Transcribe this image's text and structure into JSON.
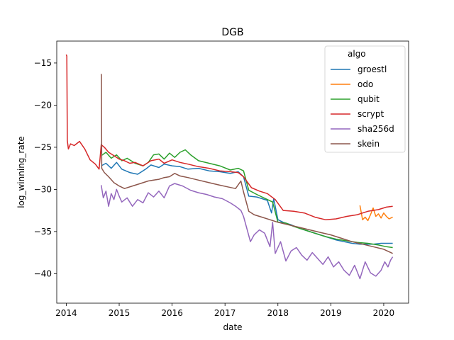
{
  "chart_data": {
    "type": "line",
    "title": "DGB",
    "xlabel": "date",
    "ylabel": "log_winning_rate",
    "xlim": [
      2013.82,
      2020.47
    ],
    "ylim": [
      -43.5,
      -12.4
    ],
    "x_ticks": [
      2014,
      2015,
      2016,
      2017,
      2018,
      2019,
      2020
    ],
    "x_tick_labels": [
      "2014",
      "2015",
      "2016",
      "2017",
      "2018",
      "2019",
      "2020"
    ],
    "y_ticks": [
      -15,
      -20,
      -25,
      -30,
      -35,
      -40
    ],
    "y_tick_labels": [
      "−15",
      "−20",
      "−25",
      "−30",
      "−35",
      "−40"
    ],
    "grid": false,
    "legend": {
      "title": "algo",
      "position": "top-right"
    },
    "series": [
      {
        "name": "groestl",
        "color": "#1f77b4",
        "x": [
          2014.66,
          2014.75,
          2014.85,
          2014.95,
          2015.05,
          2015.2,
          2015.35,
          2015.5,
          2015.6,
          2015.75,
          2015.85,
          2016.0,
          2016.15,
          2016.3,
          2016.5,
          2016.7,
          2016.9,
          2017.1,
          2017.25,
          2017.35,
          2017.45,
          2017.6,
          2017.8,
          2017.88,
          2017.92,
          2018.0,
          2018.1,
          2018.25,
          2018.4,
          2018.6,
          2018.8,
          2019.0,
          2019.1,
          2019.25,
          2019.4,
          2019.55,
          2019.65,
          2019.8,
          2019.95,
          2020.1,
          2020.17
        ],
        "y": [
          -27.2,
          -26.9,
          -27.5,
          -26.8,
          -27.6,
          -28.0,
          -28.2,
          -27.6,
          -27.1,
          -27.4,
          -27.0,
          -27.2,
          -27.3,
          -27.6,
          -27.5,
          -27.8,
          -27.9,
          -28.1,
          -27.9,
          -28.5,
          -30.8,
          -30.9,
          -31.3,
          -32.8,
          -31.1,
          -33.6,
          -33.9,
          -34.2,
          -34.6,
          -35.0,
          -35.4,
          -35.8,
          -36.0,
          -36.2,
          -36.4,
          -36.5,
          -36.5,
          -36.5,
          -36.4,
          -36.4,
          -36.4
        ]
      },
      {
        "name": "odo",
        "color": "#ff7f0e",
        "x": [
          2019.55,
          2019.6,
          2019.65,
          2019.7,
          2019.75,
          2019.8,
          2019.85,
          2019.9,
          2019.95,
          2020.0,
          2020.05,
          2020.1,
          2020.17
        ],
        "y": [
          -31.9,
          -33.6,
          -33.3,
          -33.7,
          -33.0,
          -32.2,
          -33.2,
          -32.9,
          -33.4,
          -32.8,
          -33.2,
          -33.5,
          -33.3
        ]
      },
      {
        "name": "qubit",
        "color": "#2ca02c",
        "x": [
          2014.66,
          2014.75,
          2014.85,
          2014.95,
          2015.05,
          2015.15,
          2015.3,
          2015.45,
          2015.55,
          2015.65,
          2015.75,
          2015.85,
          2015.95,
          2016.05,
          2016.15,
          2016.25,
          2016.35,
          2016.5,
          2016.7,
          2016.9,
          2017.1,
          2017.25,
          2017.35,
          2017.45,
          2017.6,
          2017.8,
          2017.9,
          2018.0,
          2018.15,
          2018.3,
          2018.5,
          2018.7,
          2018.9,
          2019.1,
          2019.3,
          2019.5,
          2019.7,
          2019.9,
          2020.05,
          2020.17
        ],
        "y": [
          -26.0,
          -25.6,
          -26.3,
          -25.9,
          -26.6,
          -26.3,
          -26.9,
          -27.2,
          -26.8,
          -25.9,
          -25.8,
          -26.4,
          -25.7,
          -26.2,
          -25.6,
          -25.3,
          -25.9,
          -26.6,
          -26.9,
          -27.2,
          -27.7,
          -27.5,
          -27.8,
          -30.1,
          -30.6,
          -31.2,
          -31.5,
          -33.9,
          -34.0,
          -34.4,
          -34.8,
          -35.2,
          -35.6,
          -35.9,
          -36.1,
          -36.3,
          -36.4,
          -36.6,
          -36.8,
          -36.9
        ]
      },
      {
        "name": "scrypt",
        "color": "#d62728",
        "x": [
          2014.0,
          2014.01,
          2014.02,
          2014.04,
          2014.08,
          2014.15,
          2014.25,
          2014.35,
          2014.45,
          2014.55,
          2014.62,
          2014.66,
          2014.72,
          2014.8,
          2014.9,
          2015.0,
          2015.1,
          2015.2,
          2015.3,
          2015.45,
          2015.6,
          2015.75,
          2015.85,
          2016.0,
          2016.15,
          2016.3,
          2016.5,
          2016.7,
          2016.9,
          2017.1,
          2017.25,
          2017.35,
          2017.5,
          2017.65,
          2017.8,
          2017.95,
          2018.1,
          2018.3,
          2018.5,
          2018.7,
          2018.9,
          2019.1,
          2019.3,
          2019.5,
          2019.7,
          2019.9,
          2020.05,
          2020.17
        ],
        "y": [
          -14.0,
          -14.2,
          -24.2,
          -25.2,
          -24.6,
          -24.8,
          -24.3,
          -25.2,
          -26.5,
          -27.0,
          -27.6,
          -24.7,
          -25.0,
          -25.6,
          -26.0,
          -26.4,
          -26.6,
          -26.9,
          -26.8,
          -27.2,
          -26.6,
          -26.4,
          -26.9,
          -26.5,
          -26.8,
          -27.0,
          -27.3,
          -27.5,
          -27.8,
          -27.9,
          -28.0,
          -28.5,
          -29.8,
          -30.2,
          -30.5,
          -31.2,
          -32.5,
          -32.6,
          -32.8,
          -33.3,
          -33.6,
          -33.5,
          -33.2,
          -33.0,
          -32.6,
          -32.4,
          -32.1,
          -32.0
        ]
      },
      {
        "name": "sha256d",
        "color": "#9467bd",
        "x": [
          2014.66,
          2014.7,
          2014.75,
          2014.8,
          2014.85,
          2014.9,
          2014.95,
          2015.0,
          2015.05,
          2015.15,
          2015.25,
          2015.35,
          2015.45,
          2015.55,
          2015.65,
          2015.75,
          2015.85,
          2015.95,
          2016.05,
          2016.2,
          2016.35,
          2016.5,
          2016.65,
          2016.8,
          2016.95,
          2017.1,
          2017.2,
          2017.3,
          2017.35,
          2017.42,
          2017.48,
          2017.55,
          2017.65,
          2017.75,
          2017.85,
          2017.9,
          2017.95,
          2018.05,
          2018.15,
          2018.25,
          2018.35,
          2018.45,
          2018.55,
          2018.65,
          2018.75,
          2018.85,
          2018.95,
          2019.05,
          2019.15,
          2019.25,
          2019.35,
          2019.45,
          2019.55,
          2019.65,
          2019.75,
          2019.85,
          2019.95,
          2020.02,
          2020.08,
          2020.13,
          2020.17
        ],
        "y": [
          -29.5,
          -31.0,
          -30.2,
          -32.0,
          -30.5,
          -31.2,
          -30.0,
          -30.8,
          -31.5,
          -31.0,
          -32.0,
          -31.2,
          -31.6,
          -30.4,
          -30.9,
          -30.2,
          -31.0,
          -29.6,
          -29.3,
          -29.6,
          -30.1,
          -30.4,
          -30.6,
          -30.9,
          -31.1,
          -31.6,
          -32.0,
          -32.5,
          -33.2,
          -34.8,
          -36.2,
          -35.4,
          -34.8,
          -35.2,
          -36.8,
          -33.9,
          -37.6,
          -36.2,
          -38.5,
          -37.3,
          -36.9,
          -37.8,
          -38.4,
          -37.5,
          -38.2,
          -38.9,
          -38.0,
          -39.2,
          -38.6,
          -39.6,
          -40.2,
          -39.0,
          -40.6,
          -38.6,
          -39.9,
          -40.3,
          -39.6,
          -38.6,
          -39.2,
          -38.4,
          -38.0
        ]
      },
      {
        "name": "skein",
        "color": "#8c564b",
        "x": [
          2014.66,
          2014.665,
          2014.67,
          2014.72,
          2014.8,
          2014.9,
          2015.0,
          2015.1,
          2015.25,
          2015.4,
          2015.55,
          2015.65,
          2015.75,
          2015.85,
          2015.95,
          2016.05,
          2016.15,
          2016.3,
          2016.5,
          2016.7,
          2016.9,
          2017.05,
          2017.2,
          2017.3,
          2017.35,
          2017.45,
          2017.55,
          2017.7,
          2017.85,
          2018.0,
          2018.2,
          2018.4,
          2018.6,
          2018.8,
          2019.0,
          2019.2,
          2019.4,
          2019.6,
          2019.8,
          2020.0,
          2020.17
        ],
        "y": [
          -16.3,
          -16.5,
          -27.5,
          -28.0,
          -28.5,
          -29.2,
          -29.6,
          -29.9,
          -29.6,
          -29.3,
          -29.0,
          -28.9,
          -28.8,
          -28.6,
          -28.5,
          -28.1,
          -28.4,
          -28.6,
          -28.9,
          -29.2,
          -29.5,
          -29.7,
          -29.9,
          -29.0,
          -30.3,
          -32.6,
          -33.0,
          -33.3,
          -33.6,
          -33.9,
          -34.2,
          -34.5,
          -34.8,
          -35.1,
          -35.4,
          -35.8,
          -36.2,
          -36.5,
          -36.8,
          -37.1,
          -37.6
        ]
      }
    ]
  }
}
